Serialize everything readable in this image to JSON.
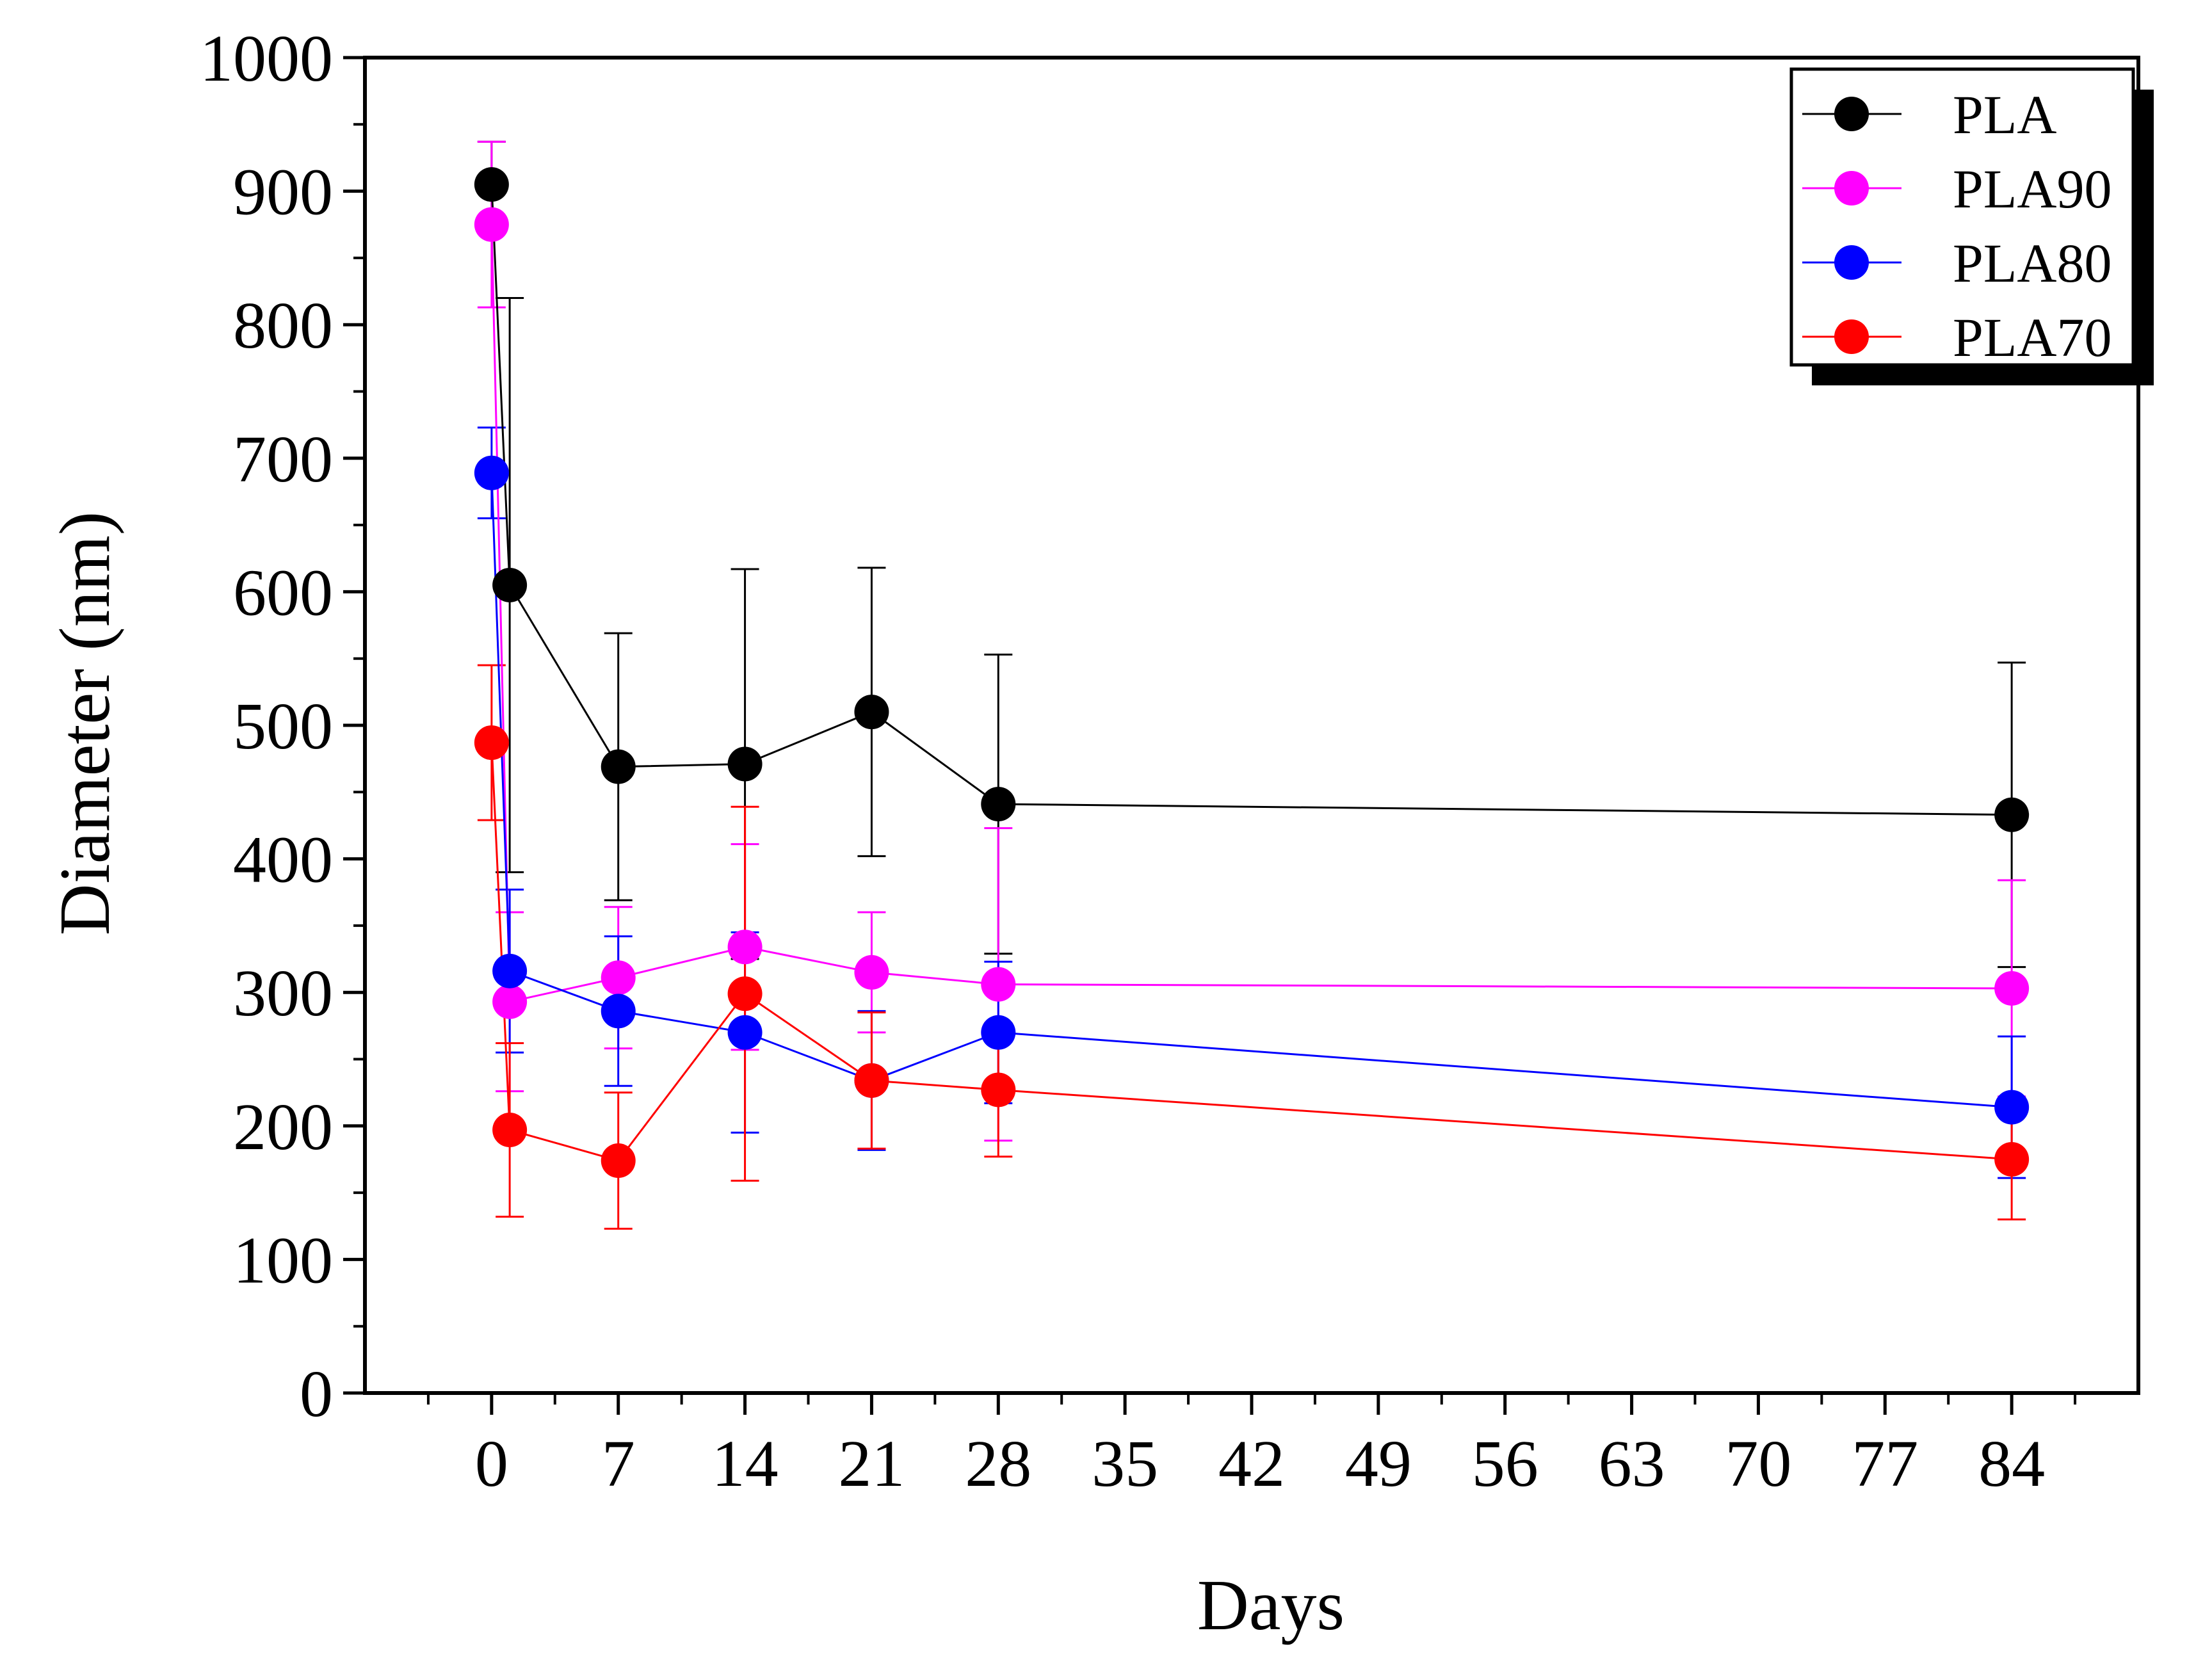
{
  "chart_data": {
    "type": "line",
    "title": "",
    "xlabel": "Days",
    "ylabel": "Diameter (nm)",
    "xlim": [
      -7,
      91
    ],
    "ylim": [
      0,
      1000
    ],
    "xticks": [
      0,
      7,
      14,
      21,
      28,
      35,
      42,
      49,
      56,
      63,
      70,
      77,
      84
    ],
    "xtick_labels": [
      "0",
      "7",
      "14",
      "21",
      "28",
      "35",
      "42",
      "49",
      "56",
      "63",
      "70",
      "77",
      "84"
    ],
    "yticks": [
      0,
      100,
      200,
      300,
      400,
      500,
      600,
      700,
      800,
      900,
      1000
    ],
    "ytick_labels": [
      "0",
      "100",
      "200",
      "300",
      "400",
      "500",
      "600",
      "700",
      "800",
      "900",
      "1000"
    ],
    "legend_position": "top-right",
    "series": [
      {
        "name": "PLA",
        "color": "#000000",
        "x": [
          0,
          1,
          7,
          14,
          21,
          28,
          84
        ],
        "y": [
          905,
          605,
          469,
          471,
          510,
          441,
          433
        ],
        "err": [
          32,
          215,
          100,
          146,
          108,
          112,
          114
        ]
      },
      {
        "name": "PLA90",
        "color": "#ff00ff",
        "x": [
          0,
          1,
          7,
          14,
          21,
          28,
          84
        ],
        "y": [
          875,
          293,
          311,
          334,
          315,
          306,
          303
        ],
        "err": [
          62,
          67,
          53,
          77,
          45,
          117,
          81
        ]
      },
      {
        "name": "PLA80",
        "color": "#0000ff",
        "x": [
          0,
          1,
          7,
          14,
          21,
          28,
          84
        ],
        "y": [
          689,
          316,
          286,
          270,
          234,
          270,
          214
        ],
        "err": [
          34,
          61,
          56,
          75,
          52,
          53,
          53
        ]
      },
      {
        "name": "PLA70",
        "color": "#ff0000",
        "x": [
          0,
          1,
          7,
          14,
          21,
          28,
          84
        ],
        "y": [
          487,
          197,
          174,
          299,
          234,
          227,
          175
        ],
        "err": [
          58,
          65,
          51,
          140,
          51,
          50,
          45
        ]
      }
    ]
  }
}
